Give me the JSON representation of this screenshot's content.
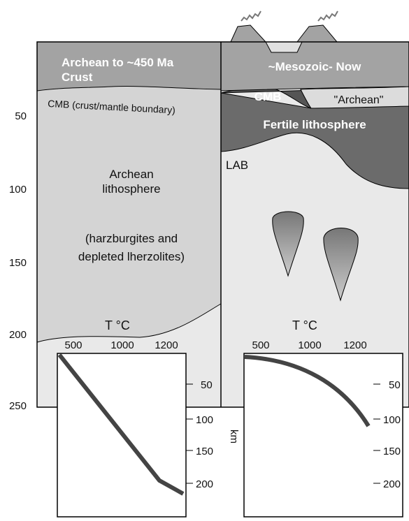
{
  "depth_axis": {
    "ticks": [
      "50",
      "100",
      "150",
      "200",
      "250"
    ]
  },
  "left_column": {
    "crust": [
      "Archean to ~450 Ma",
      "Crust"
    ],
    "cmb": "CMB (crust/mantle boundary)",
    "lithosphere": [
      "Archean",
      "lithosphere",
      "(harzburgites and",
      "depleted lherzolites)"
    ],
    "temp_label": "T °C"
  },
  "right_column": {
    "crust": "~Mesozoic- Now",
    "cmb": "CMB",
    "archean": "\"Archean\"",
    "fertile": "Fertile lithosphere",
    "lab": "LAB",
    "temp_label": "T °C"
  },
  "left_inset": {
    "temp_ticks": [
      "500",
      "1000",
      "1200"
    ],
    "depth_ticks": [
      "50",
      "100",
      "150",
      "200"
    ],
    "depth_label": "km"
  },
  "right_inset": {
    "temp_ticks": [
      "500",
      "1000",
      "1200"
    ],
    "depth_ticks": [
      "50",
      "100",
      "150",
      "200"
    ]
  }
}
